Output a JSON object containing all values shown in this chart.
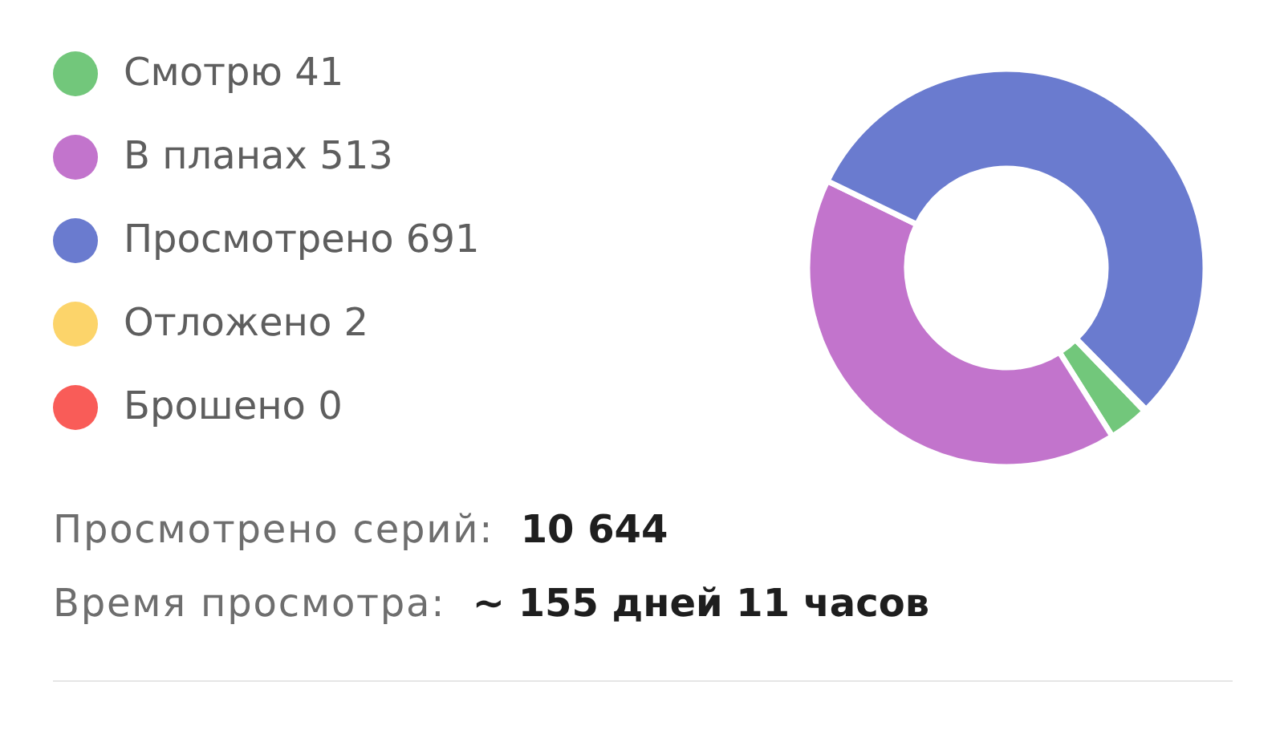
{
  "chart_data": {
    "type": "donut",
    "categories": [
      "Смотрю 41",
      "В планах 513",
      "Просмотрено 691",
      "Отложено 2",
      "Брошено 0"
    ],
    "values": [
      41,
      513,
      691,
      2,
      0
    ],
    "colors": [
      "#72c77b",
      "#c274cc",
      "#6a7bcf",
      "#fcd46a",
      "#f95c58"
    ],
    "legend": "left",
    "annotations": [
      "Просмотрено серий:  10 644",
      "Время просмотра:  ~ 155 дней 11 часов"
    ]
  }
}
